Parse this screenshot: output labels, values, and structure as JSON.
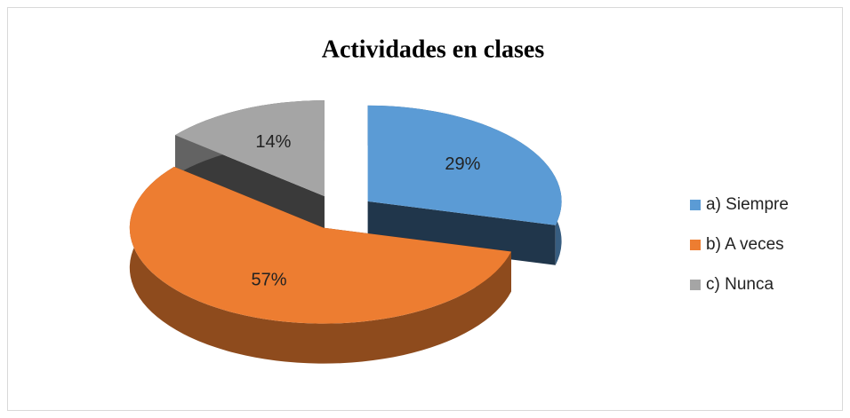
{
  "chart_data": {
    "type": "pie",
    "title": "Actividades en clases",
    "categories": [
      "a) Siempre",
      "b) A veces",
      "c) Nunca"
    ],
    "values": [
      29,
      57,
      14
    ],
    "value_labels": [
      "29%",
      "57%",
      "14%"
    ],
    "colors": [
      "#5b9bd5",
      "#ed7d31",
      "#a5a5a5"
    ],
    "legend": "right"
  }
}
